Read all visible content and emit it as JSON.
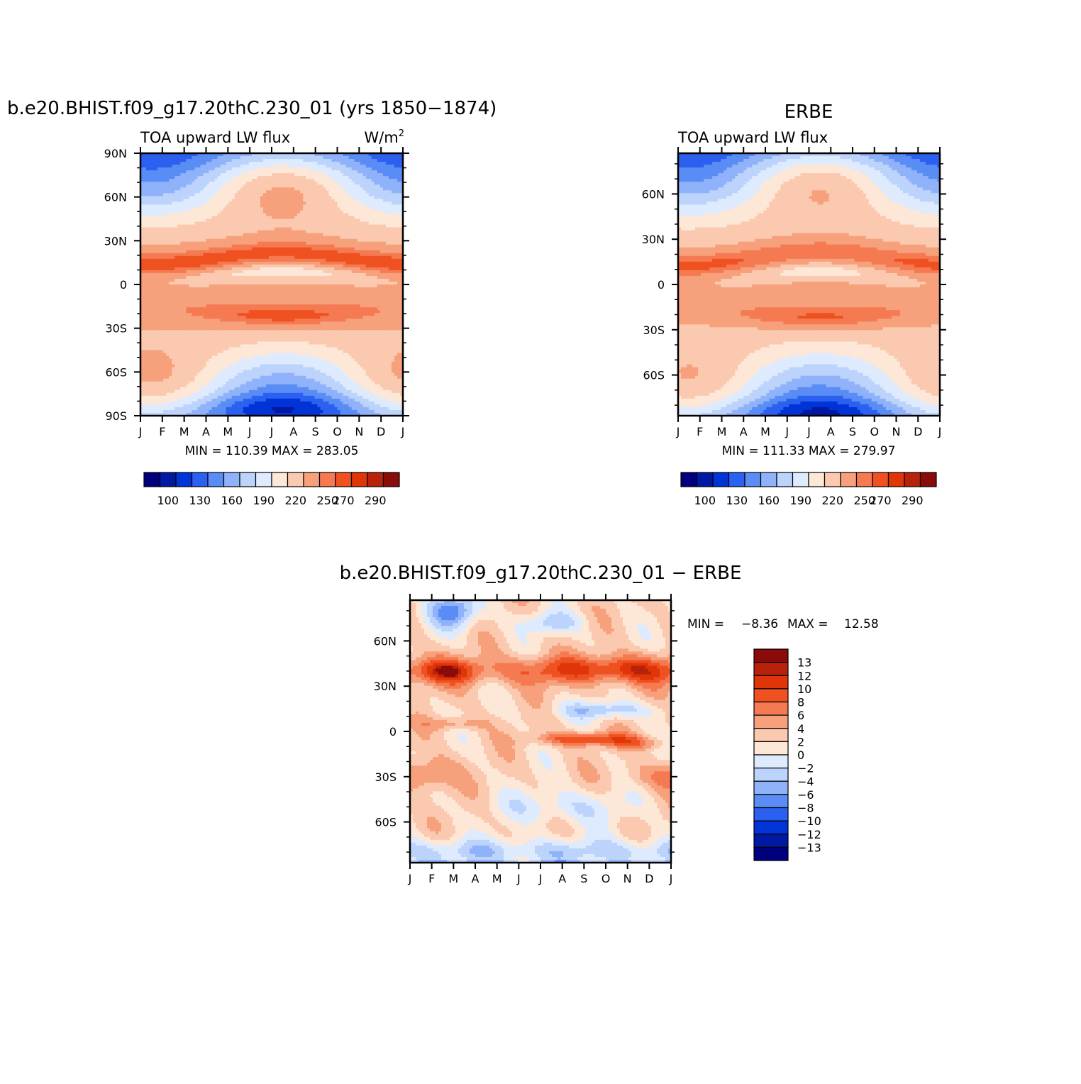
{
  "chart_data": [
    {
      "type": "heatmap",
      "title": "b.e20.BHIST.f09_g17.20thC.230_01 (yrs 1850−1874)",
      "subtitle_left": "TOA upward LW flux",
      "subtitle_right": "W/m",
      "subtitle_right_sup": "2",
      "x_ticklabels": [
        "J",
        "F",
        "M",
        "A",
        "M",
        "J",
        "J",
        "A",
        "S",
        "O",
        "N",
        "D",
        "J"
      ],
      "y_ticklabels": [
        "90N",
        "60N",
        "30N",
        "0",
        "30S",
        "60S",
        "90S"
      ],
      "y_tickvalues": [
        90,
        60,
        30,
        0,
        -30,
        -60,
        -90
      ],
      "ylim": [
        -90,
        90
      ],
      "stats": "MIN =  110.39  MAX =  283.05",
      "colorbar": {
        "orientation": "horizontal",
        "labels": [
          "100",
          "130",
          "160",
          "190",
          "220",
          "250",
          "270",
          "290"
        ],
        "colors": [
          "#00007f",
          "#0019a5",
          "#0034d6",
          "#2b60f0",
          "#5a8cf5",
          "#8fb2fa",
          "#bcd3fb",
          "#deebfe",
          "#fde7d6",
          "#fbc9b0",
          "#f6a17c",
          "#f57a52",
          "#ef5120",
          "#df3509",
          "#b9220a",
          "#8b0a0a"
        ]
      },
      "levels": [
        90,
        100,
        115,
        130,
        145,
        160,
        175,
        190,
        205,
        220,
        235,
        250,
        260,
        270,
        280,
        290,
        300
      ],
      "field": "model"
    },
    {
      "type": "heatmap",
      "title": "ERBE",
      "subtitle_left": "TOA upward LW flux",
      "x_ticklabels": [
        "J",
        "F",
        "M",
        "A",
        "M",
        "J",
        "J",
        "A",
        "S",
        "O",
        "N",
        "D",
        "J"
      ],
      "y_ticklabels": [
        "60N",
        "30N",
        "0",
        "30S",
        "60S"
      ],
      "y_tickvalues": [
        60,
        30,
        0,
        -30,
        -60
      ],
      "ylim": [
        -87,
        87
      ],
      "stats": "MIN =  111.33  MAX =  279.97",
      "colorbar": {
        "orientation": "horizontal",
        "labels": [
          "100",
          "130",
          "160",
          "190",
          "220",
          "250",
          "270",
          "290"
        ],
        "colors": [
          "#00007f",
          "#0019a5",
          "#0034d6",
          "#2b60f0",
          "#5a8cf5",
          "#8fb2fa",
          "#bcd3fb",
          "#deebfe",
          "#fde7d6",
          "#fbc9b0",
          "#f6a17c",
          "#f57a52",
          "#ef5120",
          "#df3509",
          "#b9220a",
          "#8b0a0a"
        ]
      },
      "levels": [
        90,
        100,
        115,
        130,
        145,
        160,
        175,
        190,
        205,
        220,
        235,
        250,
        260,
        270,
        280,
        290,
        300
      ],
      "field": "obs"
    },
    {
      "type": "heatmap",
      "title": "b.e20.BHIST.f09_g17.20thC.230_01  −  ERBE",
      "x_ticklabels": [
        "J",
        "F",
        "M",
        "A",
        "M",
        "J",
        "J",
        "A",
        "S",
        "O",
        "N",
        "D",
        "J"
      ],
      "y_ticklabels": [
        "60N",
        "30N",
        "0",
        "30S",
        "60S"
      ],
      "y_tickvalues": [
        60,
        30,
        0,
        -30,
        -60
      ],
      "ylim": [
        -87,
        87
      ],
      "stats_min_label": "MIN =",
      "stats_min": "−8.36",
      "stats_max_label": "MAX =",
      "stats_max": "12.58",
      "colorbar": {
        "orientation": "vertical",
        "labels": [
          "13",
          "12",
          "10",
          "8",
          "6",
          "4",
          "2",
          "0",
          "−2",
          "−4",
          "−6",
          "−8",
          "−10",
          "−12",
          "−13"
        ],
        "colors": [
          "#8b0a0a",
          "#b9220a",
          "#df3509",
          "#ef5120",
          "#f57a52",
          "#f6a17c",
          "#fbc9b0",
          "#fde7d6",
          "#deebfe",
          "#bcd3fb",
          "#8fb2fa",
          "#5a8cf5",
          "#2b60f0",
          "#0034d6",
          "#0019a5",
          "#00007f"
        ]
      },
      "levels": [
        -20,
        -13,
        -12,
        -10,
        -8,
        -6,
        -4,
        -2,
        0,
        2,
        4,
        6,
        8,
        10,
        12,
        13,
        20
      ],
      "field": "diff"
    }
  ]
}
